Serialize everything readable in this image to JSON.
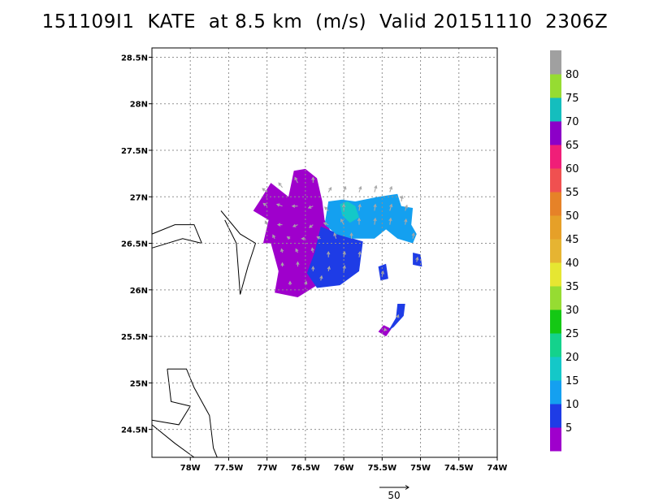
{
  "chart_data": {
    "type": "heatmap",
    "title": "151109I1  KATE  at 8.5 km  (m/s)  Valid 20151110  2306Z",
    "storm_id": "151109I1",
    "storm_name": "KATE",
    "level": "8.5 km",
    "units": "(m/s)",
    "valid_time": "20151110  2306Z",
    "xlim": [
      -78.5,
      -74.0
    ],
    "ylim": [
      24.2,
      28.6
    ],
    "x_ticks": [
      -78,
      -77.5,
      -77,
      -76.5,
      -76,
      -75.5,
      -75,
      -74.5,
      -74
    ],
    "x_tick_labels": [
      "78W",
      "77.5W",
      "77W",
      "76.5W",
      "76W",
      "75.5W",
      "75W",
      "74.5W",
      "74W"
    ],
    "y_ticks": [
      24.5,
      25,
      25.5,
      26,
      26.5,
      27,
      27.5,
      28,
      28.5
    ],
    "y_tick_labels": [
      "24.5N",
      "25N",
      "25.5N",
      "26N",
      "26.5N",
      "27N",
      "27.5N",
      "28N",
      "28.5N"
    ],
    "grid": true,
    "colorbar": {
      "labels": [
        "5",
        "10",
        "15",
        "20",
        "25",
        "30",
        "35",
        "40",
        "45",
        "50",
        "55",
        "60",
        "65",
        "70",
        "75",
        "80"
      ],
      "colors": [
        "#9f00cc",
        "#1e3ce6",
        "#14a0f0",
        "#14c8c8",
        "#14d28c",
        "#14c814",
        "#96dc32",
        "#e6e632",
        "#e6b432",
        "#e6a028",
        "#e68228",
        "#f05050",
        "#f01e78",
        "#8c00c8",
        "#14bebe",
        "#96dc32",
        "#a0a0a0"
      ],
      "placement": "right"
    },
    "reference_vector": {
      "label": "50"
    },
    "wind_regions": [
      {
        "category": "5",
        "color": "#9f00cc",
        "polygon": [
          [
            -77.1,
            26.95
          ],
          [
            -76.95,
            27.15
          ],
          [
            -76.72,
            27.0
          ],
          [
            -76.65,
            27.28
          ],
          [
            -76.5,
            27.3
          ],
          [
            -76.35,
            27.2
          ],
          [
            -76.28,
            26.95
          ],
          [
            -76.25,
            26.75
          ],
          [
            -76.12,
            26.55
          ],
          [
            -76.15,
            26.35
          ],
          [
            -76.35,
            26.05
          ],
          [
            -76.6,
            25.92
          ],
          [
            -76.9,
            25.97
          ],
          [
            -76.85,
            26.2
          ],
          [
            -76.95,
            26.5
          ],
          [
            -77.05,
            26.5
          ],
          [
            -76.98,
            26.75
          ],
          [
            -77.18,
            26.85
          ]
        ]
      },
      {
        "category": "5",
        "color": "#9f00cc",
        "polygon": [
          [
            -75.55,
            25.55
          ],
          [
            -75.45,
            25.5
          ],
          [
            -75.38,
            25.58
          ],
          [
            -75.48,
            25.62
          ]
        ]
      },
      {
        "category": "10",
        "color": "#1e3ce6",
        "polygon": [
          [
            -76.3,
            26.68
          ],
          [
            -76.0,
            26.58
          ],
          [
            -75.75,
            26.52
          ],
          [
            -75.8,
            26.2
          ],
          [
            -76.05,
            26.05
          ],
          [
            -76.35,
            26.02
          ],
          [
            -76.48,
            26.18
          ],
          [
            -76.38,
            26.4
          ]
        ]
      },
      {
        "category": "10",
        "color": "#1e3ce6",
        "polygon": [
          [
            -75.55,
            26.25
          ],
          [
            -75.45,
            26.28
          ],
          [
            -75.42,
            26.12
          ],
          [
            -75.52,
            26.1
          ]
        ]
      },
      {
        "category": "10",
        "color": "#1e3ce6",
        "polygon": [
          [
            -75.1,
            26.4
          ],
          [
            -75.0,
            26.38
          ],
          [
            -74.98,
            26.25
          ],
          [
            -75.1,
            26.27
          ]
        ]
      },
      {
        "category": "10",
        "color": "#1e3ce6",
        "polygon": [
          [
            -75.3,
            25.85
          ],
          [
            -75.2,
            25.85
          ],
          [
            -75.22,
            25.72
          ],
          [
            -75.35,
            25.6
          ],
          [
            -75.42,
            25.56
          ],
          [
            -75.32,
            25.7
          ]
        ]
      },
      {
        "category": "15",
        "color": "#14a0f0",
        "polygon": [
          [
            -76.2,
            26.95
          ],
          [
            -76.02,
            26.97
          ],
          [
            -75.85,
            26.95
          ],
          [
            -75.55,
            27.0
          ],
          [
            -75.3,
            27.03
          ],
          [
            -75.25,
            26.9
          ],
          [
            -75.1,
            26.88
          ],
          [
            -75.12,
            26.7
          ],
          [
            -75.05,
            26.6
          ],
          [
            -75.1,
            26.5
          ],
          [
            -75.3,
            26.55
          ],
          [
            -75.45,
            26.65
          ],
          [
            -75.6,
            26.55
          ],
          [
            -75.9,
            26.55
          ],
          [
            -76.1,
            26.6
          ],
          [
            -76.25,
            26.7
          ]
        ]
      },
      {
        "category": "20",
        "color": "#14c8c8",
        "polygon": [
          [
            -76.05,
            26.92
          ],
          [
            -75.95,
            26.95
          ],
          [
            -75.85,
            26.9
          ],
          [
            -75.8,
            26.78
          ],
          [
            -75.92,
            26.72
          ],
          [
            -76.02,
            26.8
          ]
        ]
      }
    ],
    "wind_vectors": [
      [
        -77.0,
        27.05,
        -0.25,
        0.2
      ],
      [
        -76.8,
        27.1,
        -0.2,
        0.25
      ],
      [
        -76.6,
        27.15,
        -0.15,
        0.3
      ],
      [
        -76.4,
        27.15,
        0.0,
        0.3
      ],
      [
        -76.2,
        27.05,
        0.15,
        0.25
      ],
      [
        -76.0,
        27.05,
        0.1,
        0.3
      ],
      [
        -75.8,
        27.05,
        0.1,
        0.3
      ],
      [
        -75.6,
        27.05,
        0.1,
        0.35
      ],
      [
        -75.4,
        27.05,
        0.1,
        0.3
      ],
      [
        -75.25,
        26.95,
        0.05,
        0.3
      ],
      [
        -77.0,
        26.9,
        -0.2,
        0.15
      ],
      [
        -76.8,
        26.9,
        -0.3,
        0.1
      ],
      [
        -76.6,
        26.9,
        -0.3,
        0.0
      ],
      [
        -76.4,
        26.9,
        -0.25,
        -0.1
      ],
      [
        -76.2,
        26.85,
        -0.2,
        0.2
      ],
      [
        -76.0,
        26.85,
        0.0,
        0.35
      ],
      [
        -75.8,
        26.85,
        0.05,
        0.35
      ],
      [
        -75.6,
        26.85,
        0.05,
        0.35
      ],
      [
        -75.4,
        26.85,
        0.1,
        0.35
      ],
      [
        -75.2,
        26.85,
        0.1,
        0.3
      ],
      [
        -77.0,
        26.7,
        -0.1,
        0.2
      ],
      [
        -76.8,
        26.7,
        -0.25,
        0.0
      ],
      [
        -76.6,
        26.7,
        -0.25,
        -0.1
      ],
      [
        -76.4,
        26.7,
        -0.2,
        -0.15
      ],
      [
        -76.2,
        26.7,
        -0.25,
        0.1
      ],
      [
        -76.0,
        26.7,
        -0.15,
        0.3
      ],
      [
        -75.8,
        26.7,
        0.0,
        0.35
      ],
      [
        -75.6,
        26.7,
        0.05,
        0.35
      ],
      [
        -75.4,
        26.7,
        0.05,
        0.35
      ],
      [
        -75.2,
        26.7,
        0.05,
        0.3
      ],
      [
        -76.9,
        26.55,
        -0.1,
        0.2
      ],
      [
        -76.7,
        26.55,
        -0.15,
        0.1
      ],
      [
        -76.5,
        26.55,
        -0.2,
        0.0
      ],
      [
        -76.3,
        26.55,
        -0.2,
        0.1
      ],
      [
        -76.1,
        26.55,
        -0.1,
        0.3
      ],
      [
        -75.9,
        26.55,
        0.0,
        0.3
      ],
      [
        -75.1,
        26.55,
        0.05,
        0.3
      ],
      [
        -76.8,
        26.4,
        -0.05,
        0.2
      ],
      [
        -76.6,
        26.4,
        -0.1,
        0.2
      ],
      [
        -76.4,
        26.4,
        -0.05,
        0.25
      ],
      [
        -76.2,
        26.35,
        0.0,
        0.3
      ],
      [
        -76.0,
        26.35,
        0.05,
        0.3
      ],
      [
        -75.8,
        26.35,
        0.05,
        0.3
      ],
      [
        -76.8,
        26.25,
        0.0,
        0.2
      ],
      [
        -76.6,
        26.25,
        0.0,
        0.25
      ],
      [
        -76.4,
        26.2,
        0.0,
        0.25
      ],
      [
        -76.2,
        26.2,
        0.05,
        0.25
      ],
      [
        -76.0,
        26.2,
        0.05,
        0.3
      ],
      [
        -76.7,
        26.05,
        0.0,
        0.2
      ],
      [
        -76.5,
        26.05,
        0.05,
        0.2
      ],
      [
        -76.3,
        26.1,
        0.05,
        0.25
      ],
      [
        -75.5,
        26.15,
        0.05,
        0.25
      ],
      [
        -75.05,
        26.3,
        0.05,
        0.25
      ],
      [
        -75.3,
        25.7,
        0.05,
        0.15
      ],
      [
        -75.45,
        25.58,
        -0.1,
        -0.1
      ]
    ],
    "coastlines": [
      [
        [
          -78.5,
          26.6
        ],
        [
          -78.2,
          26.7
        ],
        [
          -77.95,
          26.7
        ],
        [
          -77.85,
          26.5
        ],
        [
          -78.1,
          26.55
        ],
        [
          -78.5,
          26.45
        ]
      ],
      [
        [
          -77.6,
          26.85
        ],
        [
          -77.35,
          26.6
        ],
        [
          -77.15,
          26.5
        ],
        [
          -77.25,
          26.25
        ],
        [
          -77.35,
          25.95
        ],
        [
          -77.4,
          26.5
        ],
        [
          -77.55,
          26.75
        ]
      ],
      [
        [
          -78.3,
          25.15
        ],
        [
          -78.05,
          25.15
        ],
        [
          -77.95,
          24.95
        ],
        [
          -77.75,
          24.65
        ],
        [
          -77.7,
          24.3
        ],
        [
          -77.65,
          24.2
        ]
      ],
      [
        [
          -78.3,
          25.15
        ],
        [
          -78.25,
          24.8
        ],
        [
          -78.0,
          24.75
        ],
        [
          -78.15,
          24.55
        ],
        [
          -78.5,
          24.6
        ]
      ],
      [
        [
          -78.5,
          24.55
        ],
        [
          -78.2,
          24.35
        ],
        [
          -77.95,
          24.2
        ]
      ]
    ]
  }
}
